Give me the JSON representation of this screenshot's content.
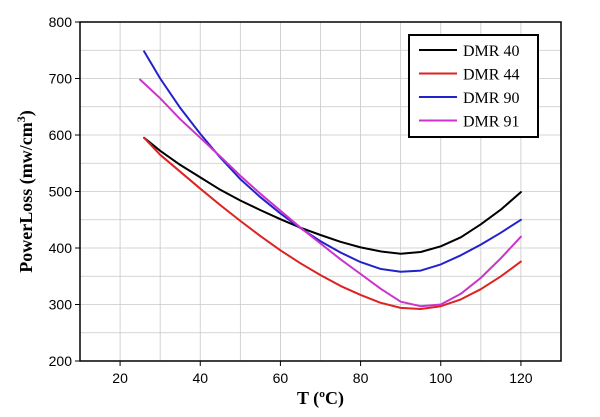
{
  "chart_data": {
    "type": "line",
    "title": "",
    "xlabel": "T (ºC)",
    "ylabel_main": "PowerLoss (mw/cm",
    "ylabel_sup": "3",
    "ylabel_close": ")",
    "xlim": [
      10,
      130
    ],
    "ylim": [
      200,
      800
    ],
    "xticks": [
      20,
      40,
      60,
      80,
      100,
      120
    ],
    "yticks": [
      200,
      300,
      400,
      500,
      600,
      700,
      800
    ],
    "grid": true,
    "legend_position": "top-right",
    "series": [
      {
        "name": "DMR 40",
        "color": "#000000",
        "points": [
          [
            26,
            595
          ],
          [
            30,
            572
          ],
          [
            35,
            547
          ],
          [
            40,
            525
          ],
          [
            45,
            503
          ],
          [
            50,
            484
          ],
          [
            55,
            467
          ],
          [
            60,
            451
          ],
          [
            65,
            436
          ],
          [
            70,
            423
          ],
          [
            75,
            411
          ],
          [
            80,
            401
          ],
          [
            85,
            394
          ],
          [
            90,
            390
          ],
          [
            95,
            393
          ],
          [
            100,
            403
          ],
          [
            105,
            419
          ],
          [
            110,
            442
          ],
          [
            115,
            468
          ],
          [
            120,
            499
          ]
        ]
      },
      {
        "name": "DMR 44",
        "color": "#dd2222",
        "points": [
          [
            26,
            595
          ],
          [
            30,
            565
          ],
          [
            35,
            535
          ],
          [
            40,
            505
          ],
          [
            45,
            476
          ],
          [
            50,
            448
          ],
          [
            55,
            421
          ],
          [
            60,
            396
          ],
          [
            65,
            373
          ],
          [
            70,
            352
          ],
          [
            75,
            333
          ],
          [
            80,
            317
          ],
          [
            85,
            303
          ],
          [
            90,
            294
          ],
          [
            95,
            292
          ],
          [
            100,
            297
          ],
          [
            105,
            309
          ],
          [
            110,
            327
          ],
          [
            115,
            350
          ],
          [
            120,
            376
          ]
        ]
      },
      {
        "name": "DMR 90",
        "color": "#2222cc",
        "points": [
          [
            26,
            748
          ],
          [
            30,
            700
          ],
          [
            35,
            648
          ],
          [
            40,
            602
          ],
          [
            45,
            560
          ],
          [
            50,
            522
          ],
          [
            55,
            490
          ],
          [
            60,
            461
          ],
          [
            65,
            435
          ],
          [
            70,
            412
          ],
          [
            75,
            392
          ],
          [
            80,
            375
          ],
          [
            85,
            363
          ],
          [
            90,
            358
          ],
          [
            95,
            360
          ],
          [
            100,
            371
          ],
          [
            105,
            387
          ],
          [
            110,
            406
          ],
          [
            115,
            427
          ],
          [
            120,
            450
          ]
        ]
      },
      {
        "name": "DMR 91",
        "color": "#cc33cc",
        "points": [
          [
            25,
            698
          ],
          [
            30,
            665
          ],
          [
            35,
            628
          ],
          [
            40,
            595
          ],
          [
            45,
            562
          ],
          [
            50,
            528
          ],
          [
            55,
            496
          ],
          [
            60,
            466
          ],
          [
            65,
            436
          ],
          [
            70,
            408
          ],
          [
            75,
            380
          ],
          [
            80,
            354
          ],
          [
            85,
            328
          ],
          [
            90,
            305
          ],
          [
            95,
            297
          ],
          [
            100,
            300
          ],
          [
            105,
            319
          ],
          [
            110,
            347
          ],
          [
            115,
            382
          ],
          [
            120,
            420
          ]
        ]
      }
    ]
  }
}
